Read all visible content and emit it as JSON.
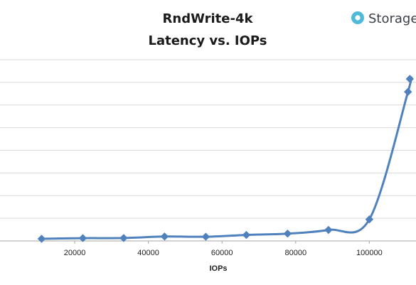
{
  "chart_data": {
    "type": "line",
    "title_lines": [
      "RndWrite-4k",
      "Latency vs. IOPs"
    ],
    "xlabel": "IOPs",
    "ylabel": "",
    "xlim": [
      0,
      112000
    ],
    "x_ticks": [
      20000,
      40000,
      60000,
      80000,
      100000
    ],
    "ylim": [
      0,
      1
    ],
    "grid": true,
    "smooth": true,
    "series": [
      {
        "color": "#4f81bd",
        "marker": "diamond",
        "points": [
          {
            "x": 11000,
            "y": 0.013
          },
          {
            "x": 22200,
            "y": 0.017
          },
          {
            "x": 33300,
            "y": 0.018
          },
          {
            "x": 44400,
            "y": 0.027
          },
          {
            "x": 55600,
            "y": 0.026
          },
          {
            "x": 66600,
            "y": 0.037
          },
          {
            "x": 77800,
            "y": 0.045
          },
          {
            "x": 88900,
            "y": 0.068
          },
          {
            "x": 100000,
            "y": 0.133
          },
          {
            "x": 110500,
            "y": 0.92
          },
          {
            "x": 111000,
            "y": 1.0
          }
        ]
      }
    ]
  },
  "brand": {
    "name": "Storage",
    "color": "#4fb9d8",
    "icon": "brand-circle-icon"
  }
}
